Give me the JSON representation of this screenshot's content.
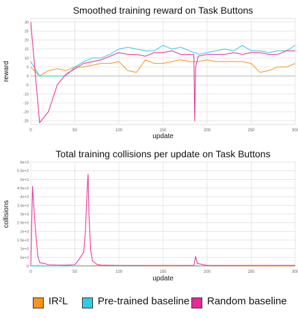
{
  "chart_data": [
    {
      "type": "line",
      "title": "Smoothed training reward on Task Buttons",
      "xlabel": "update",
      "ylabel": "reward",
      "xlim": [
        0,
        300
      ],
      "ylim": [
        -27,
        32
      ],
      "xticks": [
        "0",
        "50",
        "100",
        "150",
        "200",
        "250",
        "300"
      ],
      "yticks": [
        "-25",
        "-20",
        "-15",
        "-10",
        "-5",
        "0",
        "5",
        "10",
        "15",
        "20",
        "25",
        "30"
      ],
      "grid": true,
      "x": [
        0,
        10,
        20,
        30,
        40,
        50,
        60,
        70,
        80,
        90,
        100,
        110,
        120,
        130,
        140,
        150,
        160,
        170,
        180,
        185,
        186,
        187,
        190,
        200,
        210,
        220,
        230,
        240,
        250,
        260,
        270,
        280,
        290,
        300
      ],
      "series": [
        {
          "name": "IR²L",
          "color": "#f7931e",
          "values": [
            5,
            0,
            3,
            4,
            3,
            5,
            5,
            6,
            7,
            7,
            8,
            3,
            2,
            9,
            7,
            7,
            8,
            9,
            8,
            8,
            8,
            8,
            8,
            9,
            8,
            8,
            8,
            8,
            7,
            2,
            3,
            5,
            5,
            7
          ]
        },
        {
          "name": "Pre-trained baseline",
          "color": "#35c9e3",
          "values": [
            8,
            0,
            0,
            0,
            0,
            5,
            8,
            10,
            10,
            12,
            15,
            16,
            15,
            14,
            14,
            17,
            15,
            16,
            14,
            13,
            13,
            13,
            12,
            13,
            14,
            15,
            14,
            17,
            14,
            14,
            13,
            14,
            14,
            17
          ]
        },
        {
          "name": "Random baseline",
          "color": "#e52b95",
          "values": [
            30,
            -26,
            -20,
            -5,
            1,
            4,
            7,
            8,
            9,
            11,
            13,
            12,
            12,
            11,
            13,
            13,
            14,
            12,
            12,
            12,
            -25,
            5,
            11,
            12,
            12,
            12,
            13,
            12,
            13,
            13,
            12,
            12,
            14,
            14
          ]
        }
      ]
    },
    {
      "type": "line",
      "title": "Total training collisions per update on Task Buttons",
      "xlabel": "update",
      "ylabel": "collisions",
      "xlim": [
        0,
        300
      ],
      "ylim": [
        0,
        6000
      ],
      "xticks": [
        "0",
        "50",
        "100",
        "150",
        "200",
        "250",
        "300"
      ],
      "yticks": [
        "0",
        "5e+2",
        "1e+3",
        "1.5e+3",
        "2e+3",
        "2.5e+3",
        "3e+3",
        "3.5e+3",
        "4e+3",
        "4.5e+3",
        "5e+3",
        "5.5e+3",
        "6e+3"
      ],
      "grid": true,
      "x": [
        0,
        2,
        4,
        6,
        8,
        10,
        15,
        20,
        30,
        40,
        50,
        55,
        60,
        62,
        64,
        65,
        66,
        68,
        70,
        75,
        80,
        100,
        120,
        150,
        185,
        187,
        189,
        200,
        250,
        300
      ],
      "series": [
        {
          "name": "IR²L",
          "color": "#f7931e",
          "values": [
            0,
            30,
            20,
            10,
            40,
            10,
            10,
            10,
            5,
            10,
            5,
            5,
            5,
            5,
            5,
            5,
            5,
            5,
            5,
            5,
            5,
            5,
            5,
            5,
            5,
            5,
            5,
            5,
            5,
            5
          ]
        },
        {
          "name": "Pre-trained baseline",
          "color": "#35c9e3",
          "values": [
            0,
            10,
            5,
            5,
            5,
            5,
            5,
            5,
            5,
            5,
            5,
            20,
            10,
            10,
            10,
            10,
            10,
            10,
            20,
            30,
            10,
            10,
            10,
            20,
            10,
            10,
            10,
            10,
            20,
            30
          ]
        },
        {
          "name": "Random baseline",
          "color": "#e52b95",
          "values": [
            0,
            4600,
            3000,
            1700,
            600,
            200,
            150,
            80,
            60,
            50,
            80,
            400,
            800,
            2000,
            4500,
            5300,
            3000,
            900,
            300,
            100,
            50,
            30,
            30,
            30,
            30,
            550,
            150,
            30,
            30,
            30
          ]
        }
      ]
    }
  ],
  "legend": [
    {
      "label": "IR²L",
      "color": "#f7931e"
    },
    {
      "label": "Pre-trained baseline",
      "color": "#35c9e3"
    },
    {
      "label": "Random baseline",
      "color": "#e52b95"
    }
  ]
}
